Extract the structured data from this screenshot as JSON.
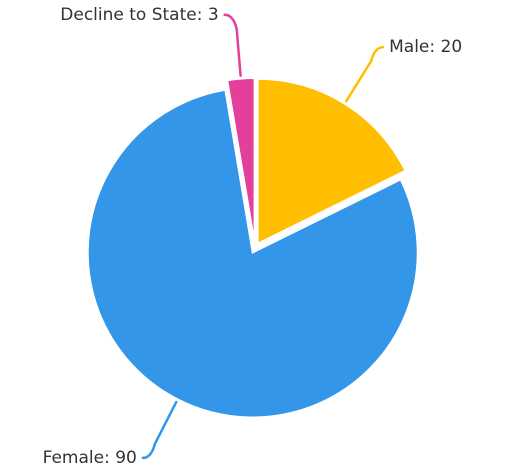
{
  "chart_data": {
    "type": "pie",
    "values": [
      20,
      90,
      3
    ],
    "value_labels": [
      "Male: 20",
      "Female: 90",
      "Decline to State: 3"
    ],
    "colors": [
      "#ffbf00",
      "#3396e8",
      "#e2409a"
    ]
  }
}
